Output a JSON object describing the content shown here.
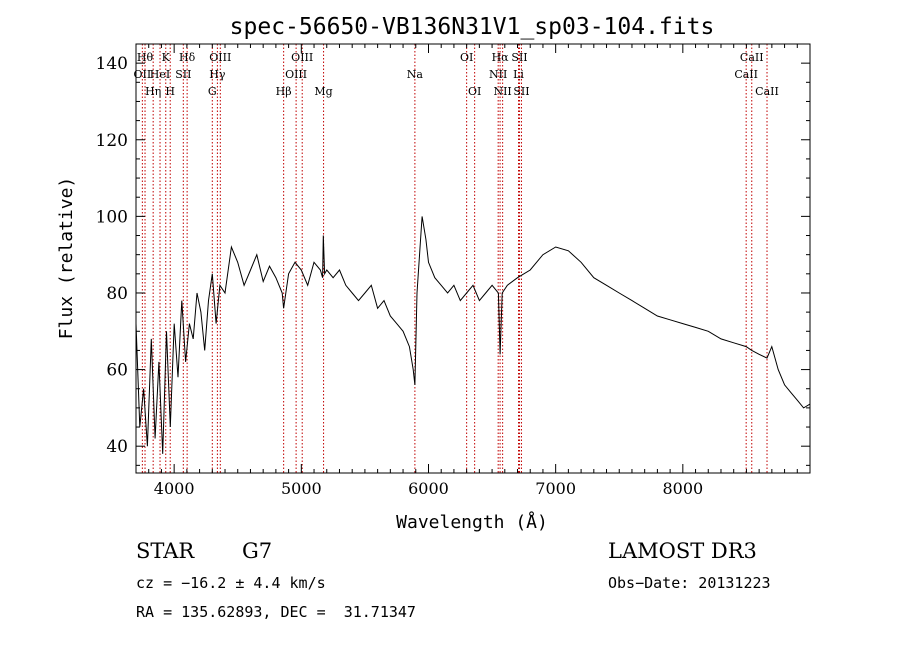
{
  "chart_data": {
    "type": "line",
    "title": "spec-56650-VB136N31V1_sp03-104.fits",
    "xlabel": "Wavelength (Å)",
    "ylabel": "Flux (relative)",
    "xlim": [
      3700,
      9000
    ],
    "ylim": [
      33,
      145
    ],
    "x_ticks": [
      4000,
      5000,
      6000,
      7000,
      8000
    ],
    "y_ticks": [
      40,
      60,
      80,
      100,
      120,
      140
    ],
    "grid": false,
    "series": [
      {
        "x": [
          3700,
          3730,
          3760,
          3790,
          3820,
          3850,
          3880,
          3910,
          3940,
          3970,
          4000,
          4030,
          4060,
          4090,
          4120,
          4150,
          4180,
          4210,
          4240,
          4270,
          4300,
          4330,
          4360,
          4400,
          4450,
          4500,
          4550,
          4600,
          4650,
          4700,
          4750,
          4800,
          4850,
          4861,
          4900,
          4950,
          5000,
          5050,
          5100,
          5150,
          5167,
          5173,
          5183,
          5200,
          5250,
          5300,
          5350,
          5400,
          5450,
          5500,
          5550,
          5600,
          5650,
          5700,
          5750,
          5800,
          5850,
          5880,
          5893,
          5910,
          5950,
          5980,
          6000,
          6050,
          6100,
          6150,
          6200,
          6250,
          6300,
          6350,
          6400,
          6450,
          6500,
          6550,
          6563,
          6580,
          6620,
          6700,
          6800,
          6900,
          7000,
          7100,
          7200,
          7300,
          7400,
          7500,
          7600,
          7700,
          7800,
          7900,
          8000,
          8100,
          8200,
          8300,
          8400,
          8498,
          8542,
          8600,
          8662,
          8700,
          8750,
          8800,
          8850,
          8900,
          8950,
          9000
        ],
        "y": [
          72,
          45,
          55,
          40,
          68,
          42,
          62,
          38,
          70,
          45,
          72,
          58,
          78,
          62,
          72,
          68,
          80,
          75,
          65,
          78,
          85,
          72,
          82,
          80,
          92,
          88,
          82,
          86,
          90,
          83,
          87,
          84,
          80,
          76,
          85,
          88,
          86,
          82,
          88,
          86,
          84,
          95,
          85,
          86,
          84,
          86,
          82,
          80,
          78,
          80,
          82,
          76,
          78,
          74,
          72,
          70,
          66,
          60,
          56,
          80,
          100,
          94,
          88,
          84,
          82,
          80,
          82,
          78,
          80,
          82,
          78,
          80,
          82,
          80,
          64,
          80,
          82,
          84,
          86,
          90,
          92,
          91,
          88,
          84,
          82,
          80,
          78,
          76,
          74,
          73,
          72,
          71,
          70,
          68,
          67,
          66,
          65,
          64,
          63,
          66,
          60,
          56,
          54,
          52,
          50,
          51
        ]
      }
    ],
    "lines": [
      {
        "wave": 3750,
        "label": "OII",
        "row": 2
      },
      {
        "wave": 3771,
        "label": "Hθ",
        "row": 1
      },
      {
        "wave": 3835,
        "label": "Hη",
        "row": 3
      },
      {
        "wave": 3889,
        "label": "HeI",
        "row": 2
      },
      {
        "wave": 3934,
        "label": "K",
        "row": 1
      },
      {
        "wave": 3969,
        "label": "H",
        "row": 3
      },
      {
        "wave": 4072,
        "label": "SII",
        "row": 2
      },
      {
        "wave": 4102,
        "label": "Hδ",
        "row": 1
      },
      {
        "wave": 4300,
        "label": "G",
        "row": 3
      },
      {
        "wave": 4340,
        "label": "Hγ",
        "row": 2
      },
      {
        "wave": 4363,
        "label": "OIII",
        "row": 1
      },
      {
        "wave": 4861,
        "label": "Hβ",
        "row": 3
      },
      {
        "wave": 4959,
        "label": "OIII",
        "row": 2
      },
      {
        "wave": 5007,
        "label": "OIII",
        "row": 1
      },
      {
        "wave": 5175,
        "label": "Mg",
        "row": 3
      },
      {
        "wave": 5893,
        "label": "Na",
        "row": 2
      },
      {
        "wave": 6300,
        "label": "OI",
        "row": 1
      },
      {
        "wave": 6363,
        "label": "OI",
        "row": 3
      },
      {
        "wave": 6548,
        "label": "NII",
        "row": 2
      },
      {
        "wave": 6563,
        "label": "Hα",
        "row": 1
      },
      {
        "wave": 6583,
        "label": "NII",
        "row": 3
      },
      {
        "wave": 6708,
        "label": "Li",
        "row": 2
      },
      {
        "wave": 6716,
        "label": "SII",
        "row": 1
      },
      {
        "wave": 6731,
        "label": "SII",
        "row": 3
      },
      {
        "wave": 8498,
        "label": "CaII",
        "row": 2
      },
      {
        "wave": 8542,
        "label": "CaII",
        "row": 1
      },
      {
        "wave": 8662,
        "label": "CaII",
        "row": 3
      }
    ],
    "line_color": "#c00000"
  },
  "info": {
    "object_class": "STAR",
    "subclass": "G7",
    "velocity": "cz = −16.2 ± 4.4 km/s",
    "coords": "RA = 135.62893, DEC =  31.71347",
    "survey": "LAMOST DR3",
    "obs_date": "Obs−Date: 20131223"
  }
}
